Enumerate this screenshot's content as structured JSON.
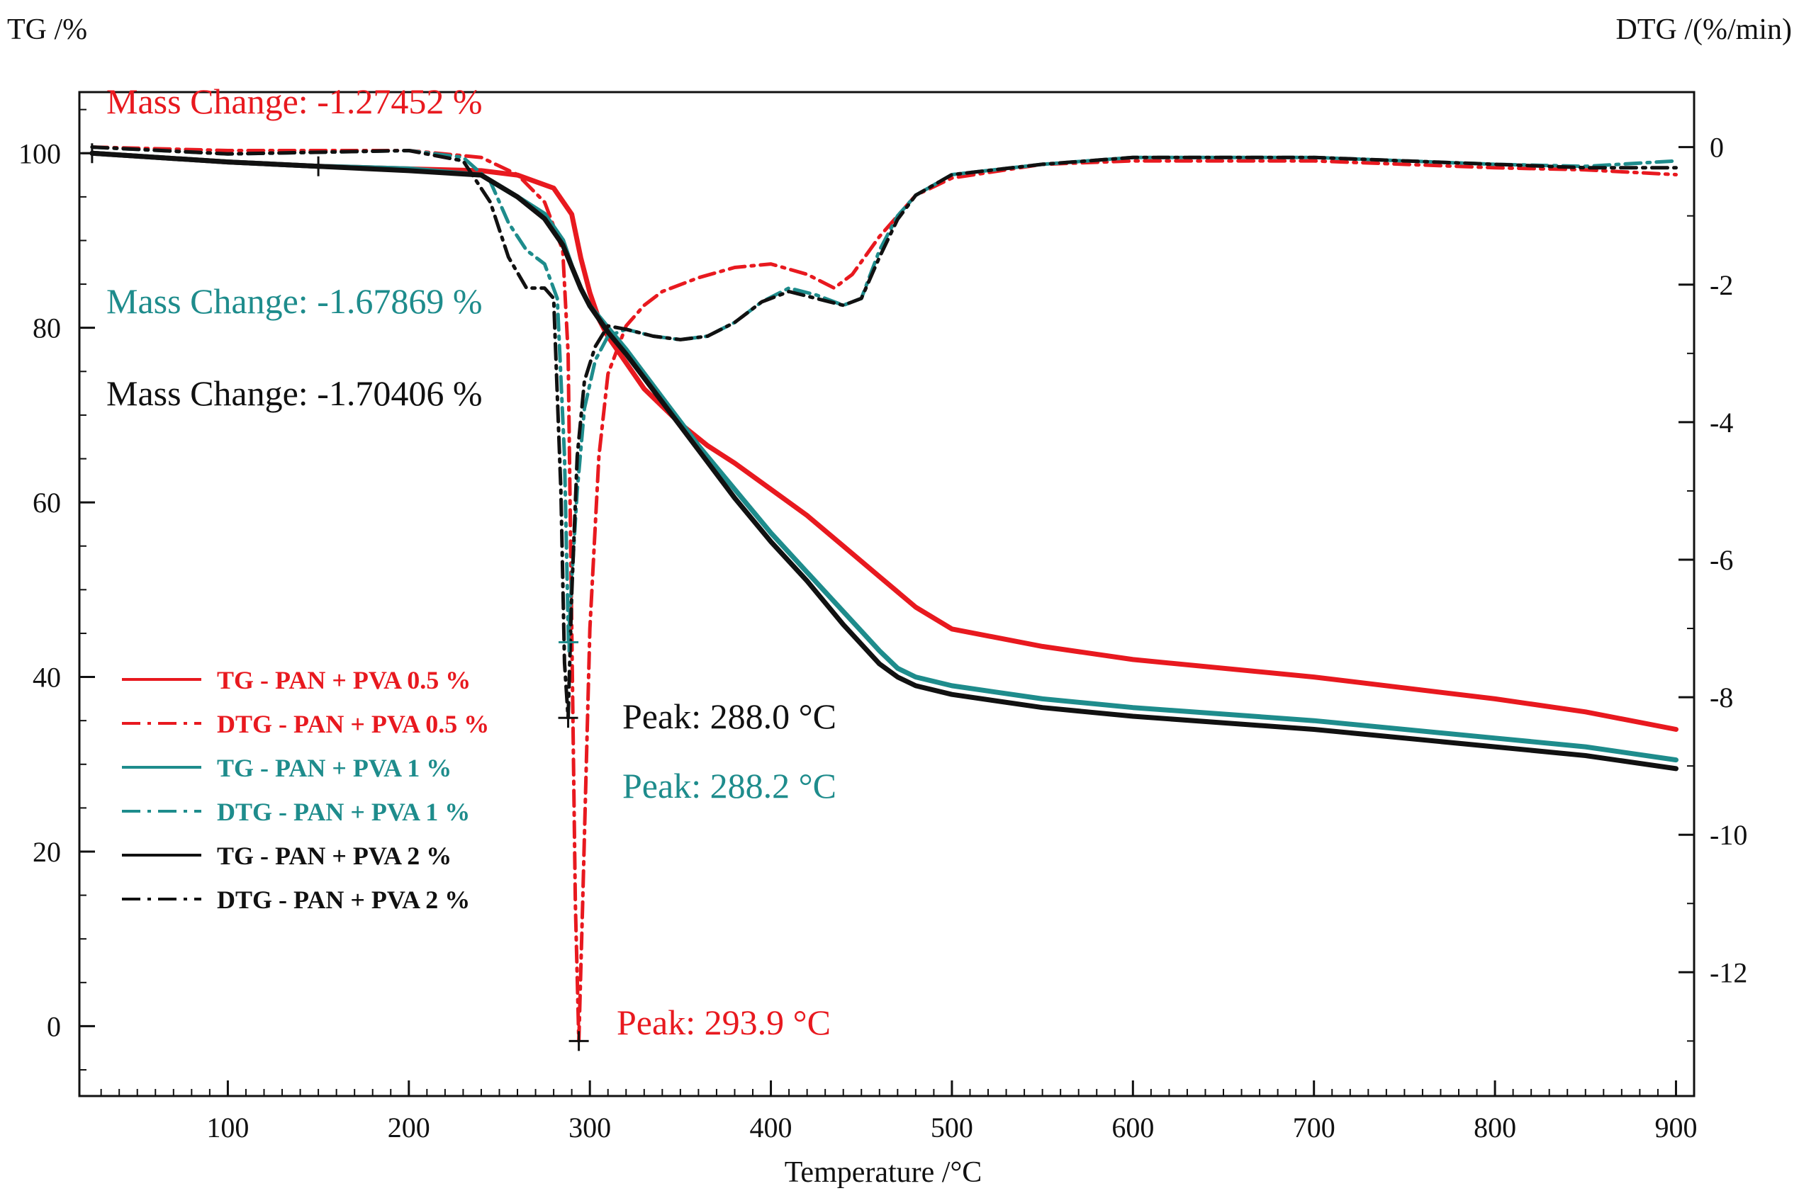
{
  "chart_data": {
    "type": "line",
    "title": "",
    "xlabel": "Temperature /°C",
    "ylabel_left": "TG /%",
    "ylabel_right": "DTG /(%/min)",
    "xlim": [
      18,
      910
    ],
    "ylim_left": [
      -8,
      107
    ],
    "ylim_right": [
      -13.8,
      0.8
    ],
    "x_ticks": [
      100,
      200,
      300,
      400,
      500,
      600,
      700,
      800,
      900
    ],
    "y_left_ticks": [
      0,
      20,
      40,
      60,
      80,
      100
    ],
    "y_right_ticks": [
      0,
      -2,
      -4,
      -6,
      -8,
      -10,
      -12
    ],
    "grid": false,
    "legend_position": "lower-left",
    "colors": {
      "pva05": "#e8191f",
      "pva1": "#1e8c8c",
      "pva2": "#111111"
    },
    "series": [
      {
        "name": "TG - PAN + PVA 0.5 %",
        "axis": "left",
        "style": "solid",
        "color": "#e8191f",
        "x": [
          25,
          100,
          150,
          200,
          240,
          260,
          280,
          290,
          295,
          300,
          305,
          310,
          320,
          330,
          350,
          365,
          380,
          400,
          420,
          440,
          460,
          480,
          500,
          550,
          600,
          700,
          800,
          850,
          900
        ],
        "y": [
          100,
          99,
          98.5,
          98.2,
          98,
          97.5,
          96,
          93,
          88,
          84,
          81,
          79,
          76,
          73,
          69,
          66.5,
          64.5,
          61.5,
          58.5,
          55,
          51.5,
          48,
          45.5,
          43.5,
          42,
          40,
          37.5,
          36,
          34
        ]
      },
      {
        "name": "DTG - PAN + PVA 0.5 %",
        "axis": "right",
        "style": "dashdot",
        "color": "#e8191f",
        "x": [
          25,
          100,
          200,
          240,
          260,
          275,
          285,
          288,
          290,
          292,
          293.9,
          296,
          300,
          305,
          310,
          320,
          330,
          340,
          360,
          380,
          400,
          420,
          435,
          445,
          460,
          480,
          500,
          550,
          600,
          700,
          800,
          850,
          900
        ],
        "y": [
          0,
          -0.05,
          -0.05,
          -0.15,
          -0.4,
          -0.8,
          -1.5,
          -3,
          -7,
          -11,
          -13,
          -11,
          -7,
          -4.5,
          -3.3,
          -2.6,
          -2.3,
          -2.1,
          -1.9,
          -1.75,
          -1.7,
          -1.85,
          -2.05,
          -1.85,
          -1.3,
          -0.7,
          -0.45,
          -0.25,
          -0.2,
          -0.2,
          -0.3,
          -0.33,
          -0.4
        ]
      },
      {
        "name": "TG - PAN + PVA 1 %",
        "axis": "left",
        "style": "solid",
        "color": "#1e8c8c",
        "x": [
          25,
          100,
          150,
          200,
          240,
          260,
          275,
          285,
          290,
          295,
          300,
          310,
          320,
          340,
          360,
          380,
          400,
          420,
          440,
          460,
          470,
          480,
          500,
          550,
          600,
          700,
          800,
          850,
          900
        ],
        "y": [
          100,
          99,
          98.5,
          98.2,
          97.5,
          95,
          93,
          90,
          87,
          84.5,
          82.5,
          80,
          77.5,
          72,
          66.5,
          61.5,
          56.5,
          52,
          47.5,
          43,
          41,
          40,
          39,
          37.5,
          36.5,
          35,
          33,
          32,
          30.5
        ]
      },
      {
        "name": "DTG - PAN + PVA 1 %",
        "axis": "right",
        "style": "dashdot",
        "color": "#1e8c8c",
        "x": [
          25,
          100,
          200,
          230,
          245,
          255,
          265,
          275,
          282,
          286,
          288.2,
          290,
          293,
          297,
          303,
          310,
          320,
          335,
          350,
          365,
          380,
          395,
          410,
          425,
          440,
          450,
          460,
          470,
          480,
          500,
          550,
          600,
          700,
          800,
          850,
          900
        ],
        "y": [
          0,
          -0.1,
          -0.05,
          -0.15,
          -0.5,
          -1.1,
          -1.5,
          -1.7,
          -2.2,
          -4.5,
          -7.2,
          -6.3,
          -5,
          -3.8,
          -3.1,
          -2.75,
          -2.65,
          -2.75,
          -2.8,
          -2.75,
          -2.55,
          -2.25,
          -2.05,
          -2.15,
          -2.3,
          -2.2,
          -1.5,
          -1,
          -0.7,
          -0.4,
          -0.25,
          -0.15,
          -0.15,
          -0.25,
          -0.28,
          -0.2
        ]
      },
      {
        "name": "TG - PAN + PVA 2 %",
        "axis": "left",
        "style": "solid",
        "color": "#111111",
        "x": [
          25,
          100,
          150,
          200,
          240,
          260,
          275,
          285,
          290,
          295,
          300,
          310,
          320,
          340,
          360,
          380,
          400,
          420,
          440,
          460,
          470,
          480,
          500,
          550,
          600,
          700,
          800,
          850,
          900
        ],
        "y": [
          100,
          99,
          98.5,
          98,
          97.5,
          95,
          92.5,
          89.5,
          87,
          84.5,
          82.5,
          79.5,
          77,
          71.5,
          66,
          60.5,
          55.5,
          51,
          46,
          41.5,
          40,
          39,
          38,
          36.5,
          35.5,
          34,
          32,
          31,
          29.5
        ]
      },
      {
        "name": "DTG - PAN + PVA 2 %",
        "axis": "right",
        "style": "dashdot",
        "color": "#111111",
        "x": [
          25,
          100,
          200,
          230,
          245,
          255,
          265,
          275,
          280,
          284,
          286,
          288,
          290,
          293,
          297,
          303,
          310,
          320,
          335,
          350,
          365,
          380,
          395,
          410,
          425,
          440,
          450,
          460,
          470,
          480,
          500,
          550,
          600,
          700,
          800,
          850,
          900
        ],
        "y": [
          0,
          -0.1,
          -0.05,
          -0.2,
          -0.8,
          -1.6,
          -2.05,
          -2.05,
          -2.2,
          -5,
          -7.5,
          -8.3,
          -6.5,
          -4.5,
          -3.4,
          -2.9,
          -2.6,
          -2.65,
          -2.75,
          -2.8,
          -2.75,
          -2.55,
          -2.25,
          -2.1,
          -2.2,
          -2.3,
          -2.2,
          -1.6,
          -1.05,
          -0.7,
          -0.4,
          -0.25,
          -0.15,
          -0.15,
          -0.25,
          -0.3,
          -0.3
        ]
      }
    ],
    "markers": [
      {
        "axis": "left",
        "x": 25,
        "y": 100,
        "color": "#111111"
      },
      {
        "axis": "left",
        "x": 150,
        "y": 98.5,
        "color": "#111111"
      },
      {
        "axis": "right",
        "x": 288.0,
        "y": -8.3,
        "color": "#111111"
      },
      {
        "axis": "right",
        "x": 288.2,
        "y": -7.2,
        "color": "#1e8c8c"
      },
      {
        "axis": "right",
        "x": 293.9,
        "y": -13,
        "color": "#111111"
      }
    ],
    "annotations": [
      {
        "text": "Mass Change: -1.27452 %",
        "color": "#e8191f"
      },
      {
        "text": "Mass Change: -1.67869 %",
        "color": "#1e8c8c"
      },
      {
        "text": "Mass Change: -1.70406 %",
        "color": "#111111"
      },
      {
        "text": "Peak: 288.0 °C",
        "color": "#111111"
      },
      {
        "text": "Peak: 288.2 °C",
        "color": "#1e8c8c"
      },
      {
        "text": "Peak: 293.9 °C",
        "color": "#e8191f"
      }
    ]
  }
}
